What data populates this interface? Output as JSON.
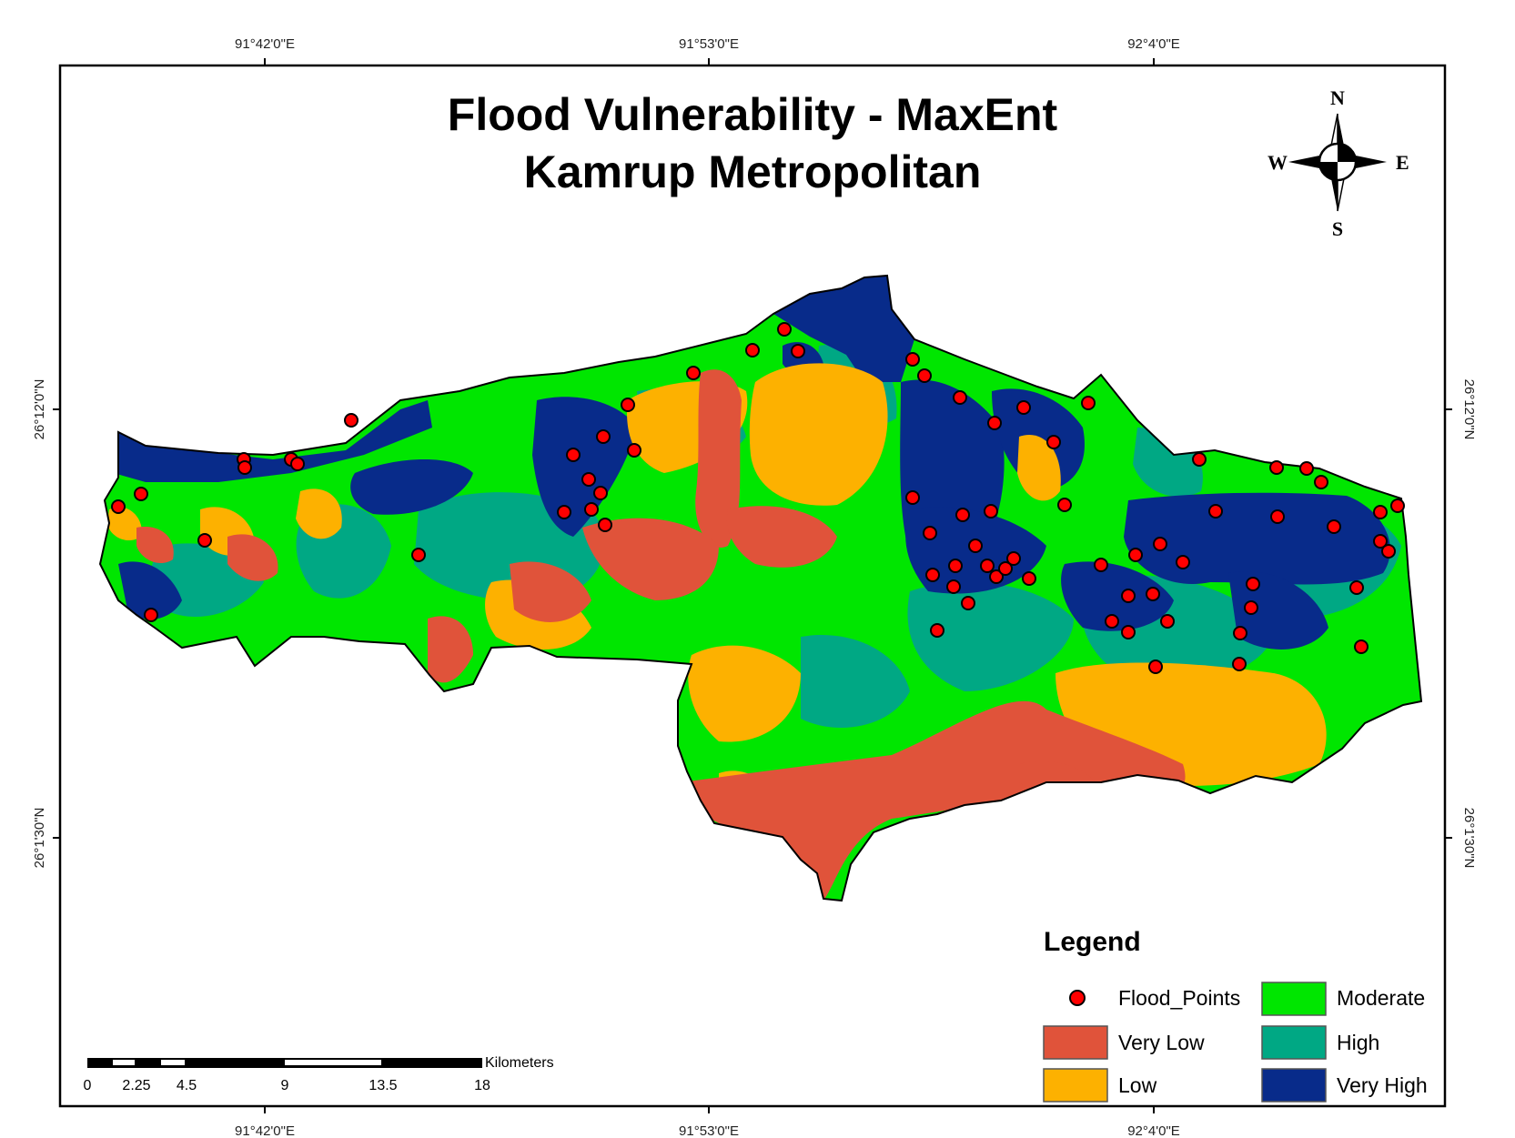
{
  "map": {
    "title_line1": "Flood Vulnerability - MaxEnt",
    "title_line2": "Kamrup Metropolitan"
  },
  "graticule": {
    "longitudes": [
      "91°42'0\"E",
      "91°53'0\"E",
      "92°4'0\"E"
    ],
    "latitudes": [
      "26°12'0\"N",
      "26°1'30\"N"
    ]
  },
  "north_arrow": {
    "n": "N",
    "s": "S",
    "e": "E",
    "w": "W"
  },
  "legend": {
    "title": "Legend",
    "items": [
      {
        "label": "Flood_Points",
        "color": "#ff0000",
        "symbol": "point"
      },
      {
        "label": "Very Low",
        "color": "#e0533a"
      },
      {
        "label": "Low",
        "color": "#fdb100"
      },
      {
        "label": "Moderate",
        "color": "#00e600"
      },
      {
        "label": "High",
        "color": "#00a884"
      },
      {
        "label": "Very High",
        "color": "#082b8a"
      }
    ]
  },
  "scale_bar": {
    "unit": "Kilometers",
    "ticks": [
      "0",
      "2.25",
      "4.5",
      "9",
      "13.5",
      "18"
    ]
  },
  "colors": {
    "very_low": "#e0533a",
    "low": "#fdb100",
    "moderate": "#00e600",
    "high": "#00a884",
    "very_high": "#082b8a",
    "flood_point": "#ff0000"
  }
}
